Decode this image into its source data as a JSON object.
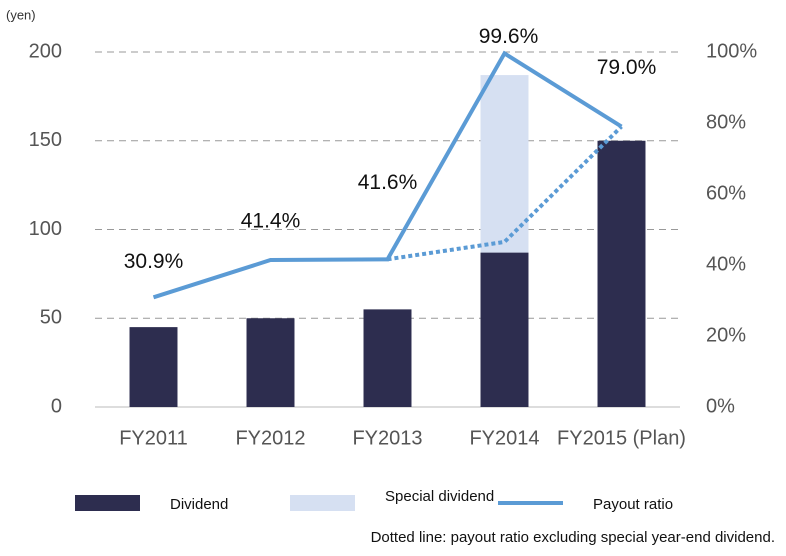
{
  "chart_data": {
    "type": "bar",
    "y_unit": "(yen)",
    "categories": [
      "FY2011",
      "FY2012",
      "FY2013",
      "FY2014",
      "FY2015 (Plan)"
    ],
    "series": [
      {
        "name": "Dividend",
        "color": "#2d2d4f",
        "values": [
          45,
          50,
          55,
          87,
          150
        ]
      },
      {
        "name": "Special dividend",
        "color": "#d6e0f2",
        "values": [
          null,
          null,
          null,
          100,
          null
        ]
      },
      {
        "name": "Payout ratio",
        "color": "#5b9bd5",
        "type": "line",
        "axis": "y2",
        "values": [
          30.9,
          41.4,
          41.6,
          99.6,
          79.0
        ],
        "value_labels": [
          "30.9%",
          "41.4%",
          "41.6%",
          "99.6%",
          "79.0%"
        ]
      }
    ],
    "excluding_special": {
      "color": "#5b9bd5",
      "style": "dotted",
      "axis": "y2",
      "values": [
        null,
        null,
        41.6,
        46.5,
        79.0
      ]
    },
    "ylim": [
      0,
      200
    ],
    "yticks": [
      0,
      50,
      100,
      150,
      200
    ],
    "y2lim": [
      0,
      100
    ],
    "y2ticks": [
      {
        "value": 0,
        "label": "0%"
      },
      {
        "value": 20,
        "label": "20%"
      },
      {
        "value": 40,
        "label": "40%"
      },
      {
        "value": 60,
        "label": "60%"
      },
      {
        "value": 80,
        "label": "80%"
      },
      {
        "value": 100,
        "label": "100%"
      }
    ],
    "grid": true,
    "legend": "bottom",
    "note": "Dotted line: payout ratio excluding special year-end dividend."
  }
}
